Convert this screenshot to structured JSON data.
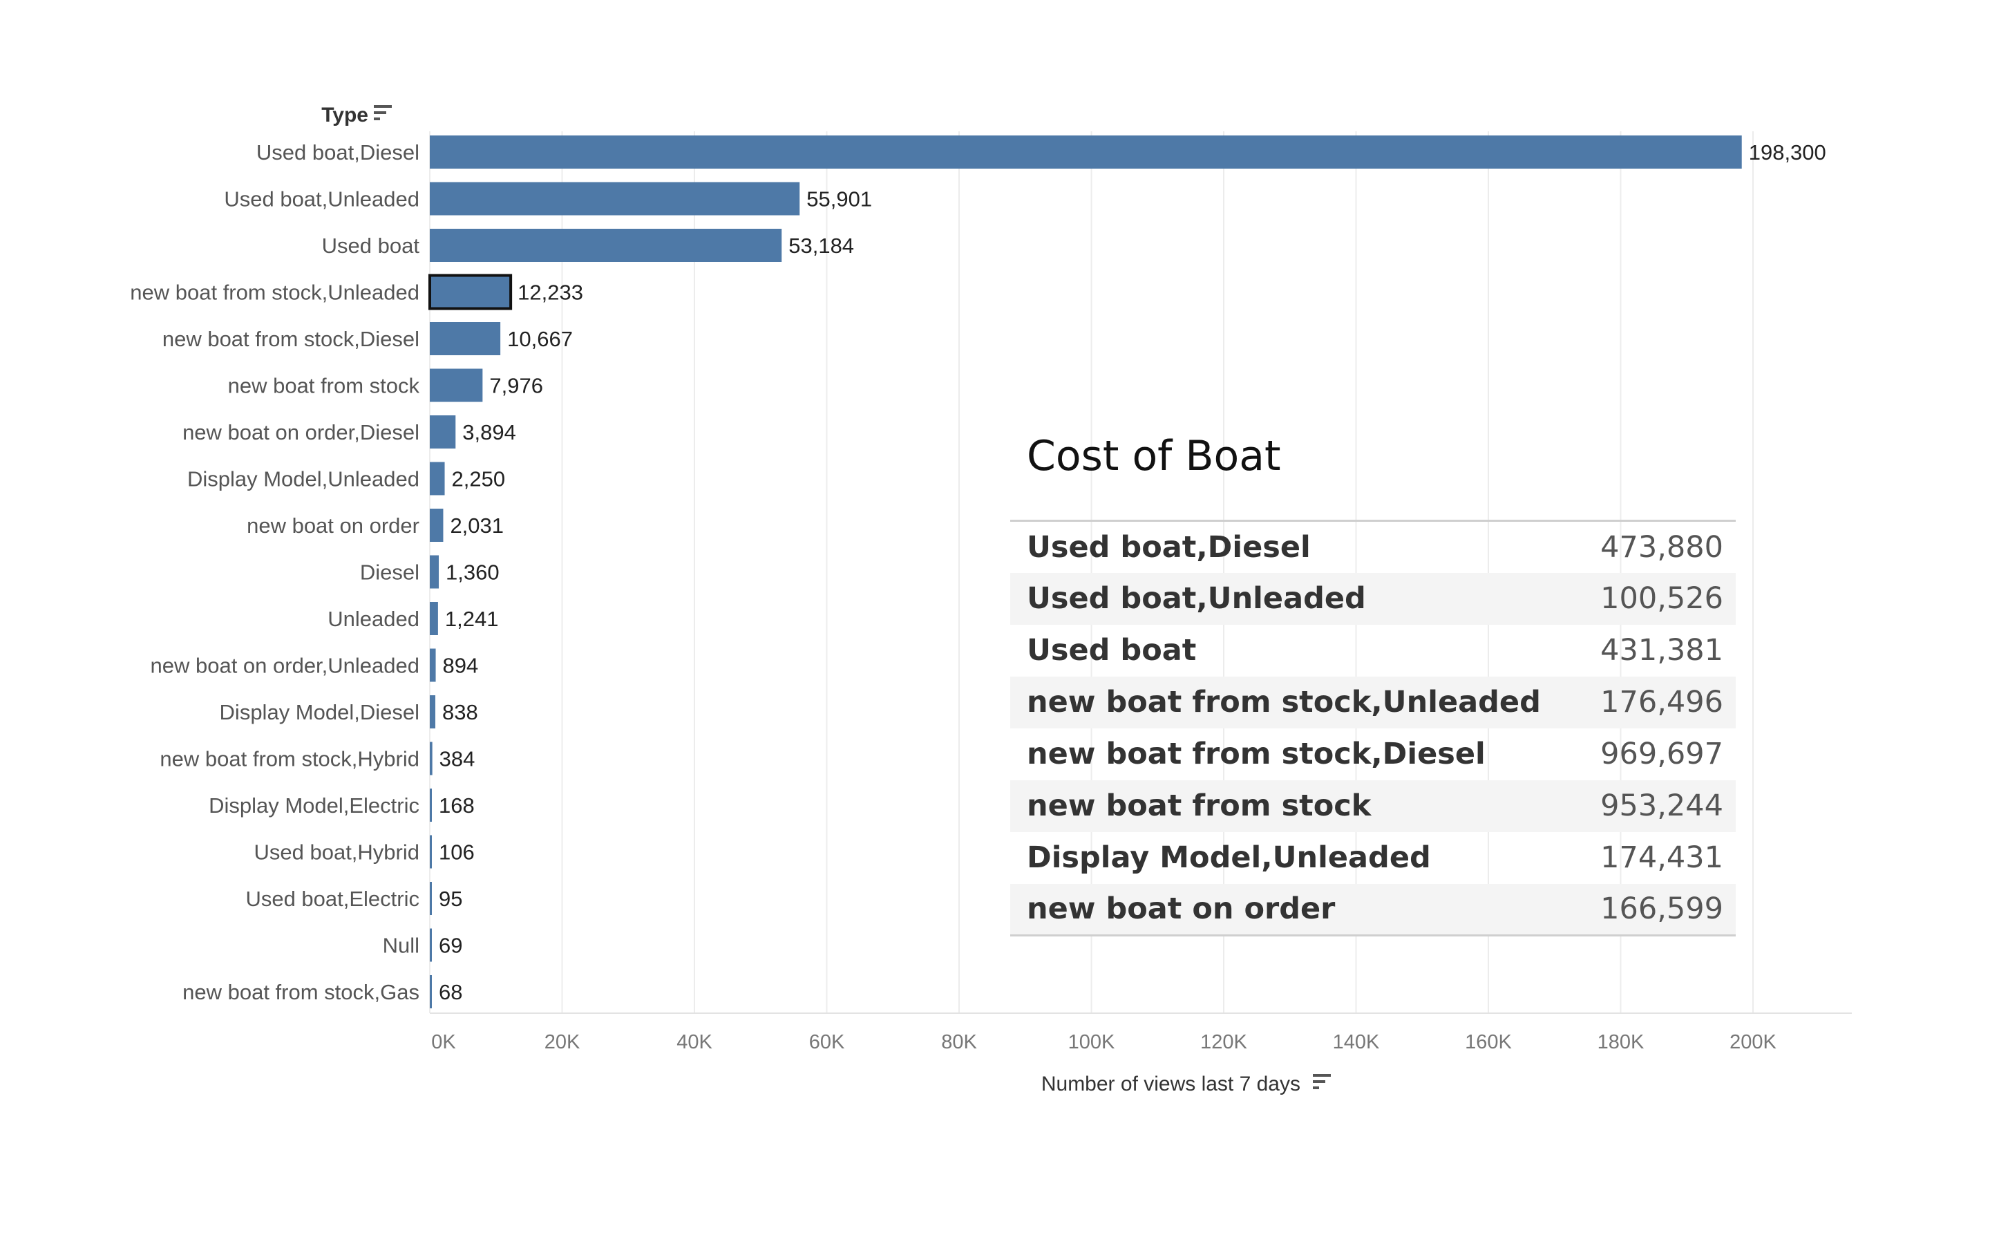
{
  "chart_data": {
    "type": "bar",
    "orientation": "horizontal",
    "header": "Type",
    "xlabel": "Number of views last 7 days",
    "xlim": [
      0,
      205000
    ],
    "grid": true,
    "bar_color": "#4e79a7",
    "highlight_category": "new boat from stock,Unleaded",
    "categories": [
      "Used boat,Diesel",
      "Used boat,Unleaded",
      "Used boat",
      "new boat from stock,Unleaded",
      "new boat from stock,Diesel",
      "new boat from stock",
      "new boat on order,Diesel",
      "Display Model,Unleaded",
      "new boat on order",
      "Diesel",
      "Unleaded",
      "new boat on order,Unleaded",
      "Display Model,Diesel",
      "new boat from stock,Hybrid",
      "Display Model,Electric",
      "Used boat,Hybrid",
      "Used boat,Electric",
      "Null",
      "new boat from stock,Gas"
    ],
    "values": [
      198300,
      55901,
      53184,
      12233,
      10667,
      7976,
      3894,
      2250,
      2031,
      1360,
      1241,
      894,
      838,
      384,
      168,
      106,
      95,
      69,
      68
    ],
    "value_labels": [
      "198,300",
      "55,901",
      "53,184",
      "12,233",
      "10,667",
      "7,976",
      "3,894",
      "2,250",
      "2,031",
      "1,360",
      "1,241",
      "894",
      "838",
      "384",
      "168",
      "106",
      "95",
      "69",
      "68"
    ],
    "ticks": [
      {
        "value": 0,
        "label": "0K"
      },
      {
        "value": 20000,
        "label": "20K"
      },
      {
        "value": 40000,
        "label": "40K"
      },
      {
        "value": 60000,
        "label": "60K"
      },
      {
        "value": 80000,
        "label": "80K"
      },
      {
        "value": 100000,
        "label": "100K"
      },
      {
        "value": 120000,
        "label": "120K"
      },
      {
        "value": 140000,
        "label": "140K"
      },
      {
        "value": 160000,
        "label": "160K"
      },
      {
        "value": 180000,
        "label": "180K"
      },
      {
        "value": 200000,
        "label": "200K"
      }
    ]
  },
  "cost_table": {
    "title": "Cost of Boat",
    "rows": [
      {
        "name": "Used boat,Diesel",
        "value": "473,880"
      },
      {
        "name": "Used boat,Unleaded",
        "value": "100,526"
      },
      {
        "name": "Used boat",
        "value": "431,381"
      },
      {
        "name": "new boat from stock,Unleaded",
        "value": "176,496"
      },
      {
        "name": "new boat from stock,Diesel",
        "value": "969,697"
      },
      {
        "name": "new boat from stock",
        "value": "953,244"
      },
      {
        "name": "Display Model,Unleaded",
        "value": "174,431"
      },
      {
        "name": "new boat on order",
        "value": "166,599"
      }
    ]
  }
}
